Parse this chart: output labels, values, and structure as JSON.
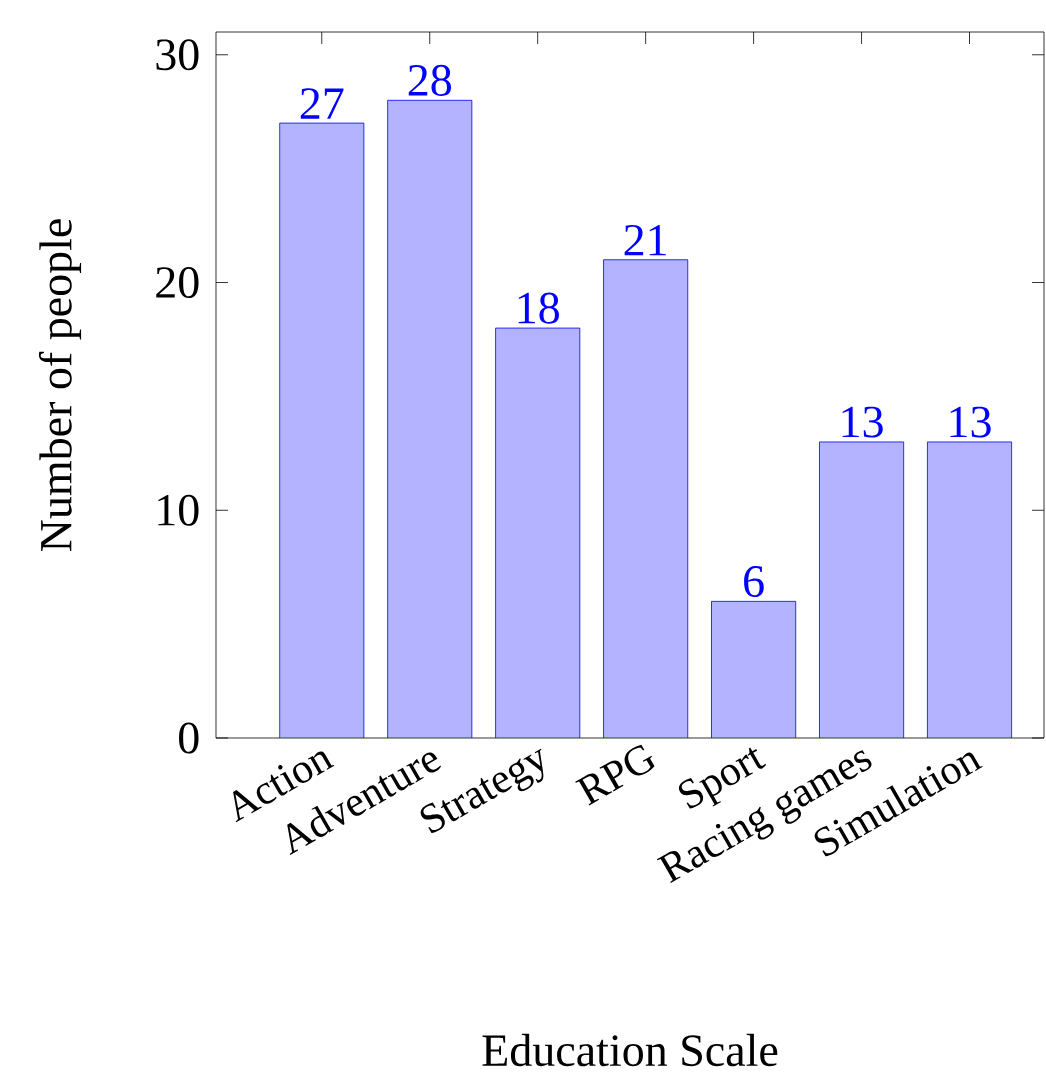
{
  "chart_data": {
    "type": "bar",
    "xlabel": "Education Scale",
    "ylabel": "Number of people",
    "categories": [
      "Action",
      "Adventure",
      "Strategy",
      "RPG",
      "Sport",
      "Racing games",
      "Simulation"
    ],
    "values": [
      27,
      28,
      18,
      21,
      6,
      13,
      13
    ],
    "color": "#b3b3ff",
    "ylim": [
      0,
      31
    ],
    "yticks": [
      0,
      10,
      20,
      30
    ],
    "data_labels": true,
    "grid": false
  }
}
